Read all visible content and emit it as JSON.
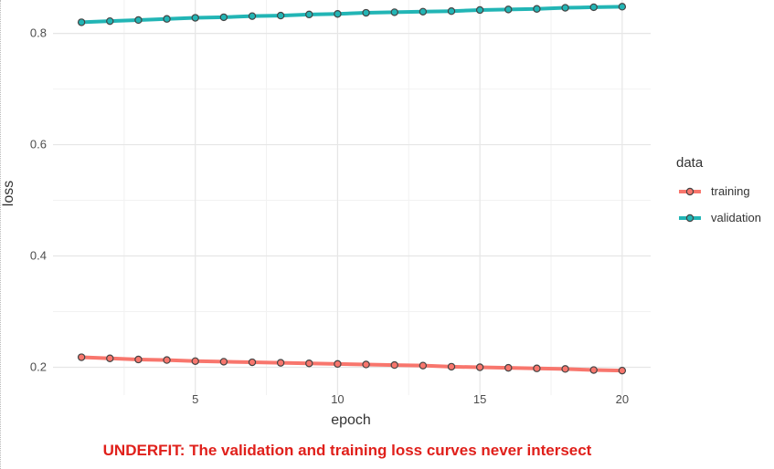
{
  "caption": {
    "text": "UNDERFIT: The validation and training loss curves never intersect",
    "color": "#e0201b"
  },
  "chart_data": {
    "type": "line",
    "xlabel": "epoch",
    "ylabel": "loss",
    "x": [
      1,
      2,
      3,
      4,
      5,
      6,
      7,
      8,
      9,
      10,
      11,
      12,
      13,
      14,
      15,
      16,
      17,
      18,
      19,
      20
    ],
    "xlim": [
      0,
      21
    ],
    "ylim": [
      0.15,
      0.86
    ],
    "x_ticks": [
      5,
      10,
      15,
      20
    ],
    "y_ticks": [
      0.2,
      0.4,
      0.6,
      0.8
    ],
    "x_tick_labels": [
      "5",
      "10",
      "15",
      "20"
    ],
    "y_tick_labels": [
      "0.2",
      "0.4",
      "0.6",
      "0.8"
    ],
    "grid": true,
    "legend": {
      "title": "data",
      "position": "right"
    },
    "series": [
      {
        "name": "training",
        "color": "#f8766d",
        "values": [
          0.218,
          0.216,
          0.214,
          0.213,
          0.211,
          0.21,
          0.209,
          0.208,
          0.207,
          0.206,
          0.205,
          0.204,
          0.203,
          0.201,
          0.2,
          0.199,
          0.198,
          0.197,
          0.195,
          0.194
        ]
      },
      {
        "name": "validation",
        "color": "#22b5b5",
        "values": [
          0.82,
          0.822,
          0.824,
          0.826,
          0.828,
          0.829,
          0.831,
          0.832,
          0.834,
          0.835,
          0.837,
          0.838,
          0.839,
          0.84,
          0.842,
          0.843,
          0.844,
          0.846,
          0.847,
          0.848
        ]
      }
    ]
  }
}
